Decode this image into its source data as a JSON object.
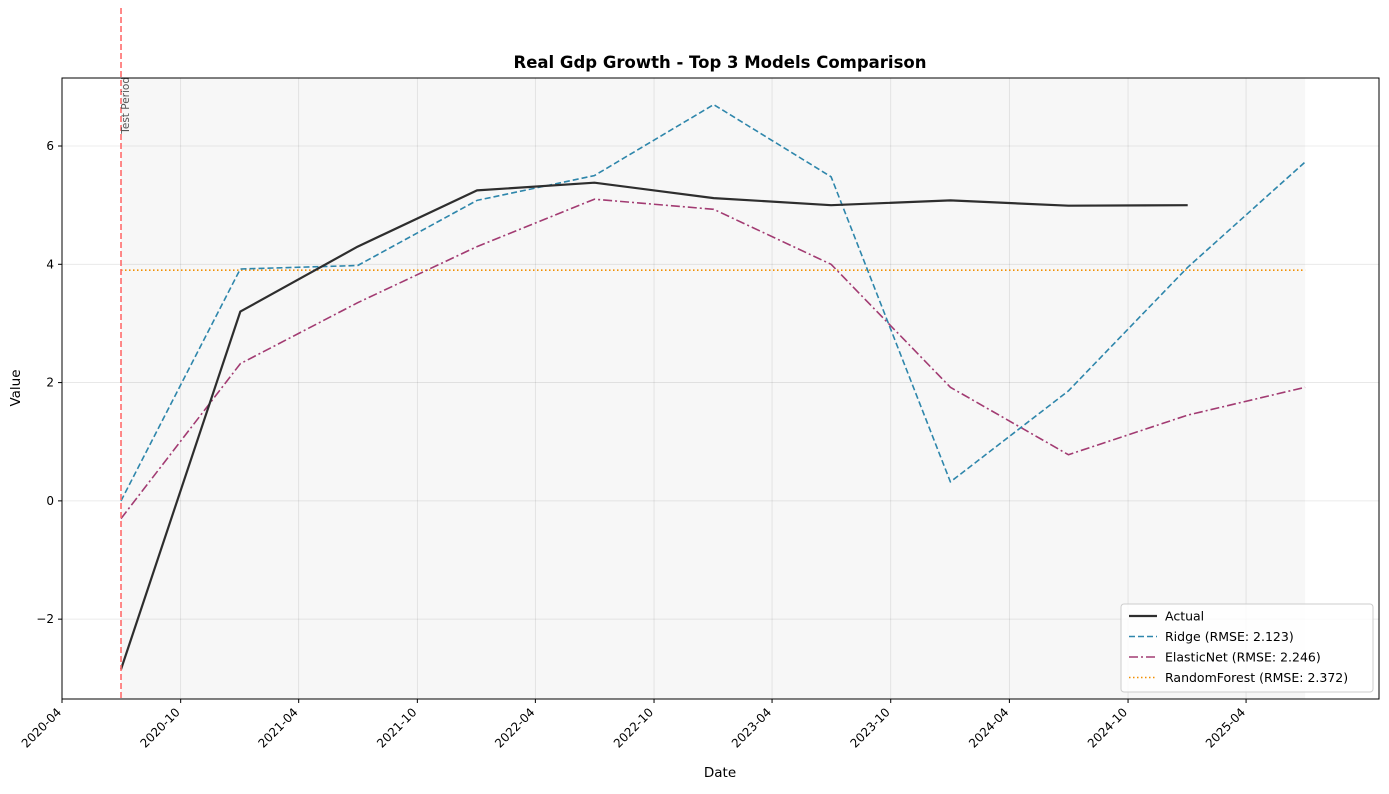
{
  "chart_data": {
    "type": "line",
    "title": "Real Gdp Growth - Top 3 Models Comparison",
    "xlabel": "Date",
    "ylabel": "Value",
    "xlim": [
      "2020-04-01",
      "2025-10-23"
    ],
    "ylim": [
      -3.35,
      7.15
    ],
    "x_ticks": [
      "2020-04",
      "2020-10",
      "2021-04",
      "2021-10",
      "2022-04",
      "2022-10",
      "2023-04",
      "2023-10",
      "2024-04",
      "2024-10",
      "2025-04"
    ],
    "y_ticks": [
      -2,
      0,
      2,
      4,
      6
    ],
    "y_tick_labels": [
      "−2",
      "0",
      "2",
      "4",
      "6"
    ],
    "grid": true,
    "legend_position": "lower-right",
    "test_period": {
      "label": "Test Period",
      "start": "2020-07-01",
      "end": "2025-07-01",
      "line_color": "#ff6b6b",
      "shade_color": "#f7f7f7"
    },
    "series": [
      {
        "name": "Actual",
        "color": "#2e2e2e",
        "style": "solid",
        "x": [
          "2020-07-01",
          "2021-01-01",
          "2021-07-01",
          "2022-01-01",
          "2022-07-01",
          "2023-01-01",
          "2023-07-01",
          "2024-01-01",
          "2024-07-01",
          "2025-01-01"
        ],
        "values": [
          -2.85,
          3.2,
          4.3,
          5.25,
          5.38,
          5.12,
          5.0,
          5.08,
          4.99,
          5.0
        ]
      },
      {
        "name": "Ridge (RMSE: 2.123)",
        "color": "#2e86ab",
        "style": "dashed",
        "x": [
          "2020-07-01",
          "2021-01-01",
          "2021-07-01",
          "2022-01-01",
          "2022-07-01",
          "2023-01-01",
          "2023-07-01",
          "2024-01-01",
          "2024-07-01",
          "2025-01-01",
          "2025-07-01"
        ],
        "values": [
          0.0,
          3.92,
          3.98,
          5.08,
          5.5,
          6.7,
          5.48,
          0.32,
          1.86,
          3.95,
          5.73
        ]
      },
      {
        "name": "ElasticNet (RMSE: 2.246)",
        "color": "#a23b72",
        "style": "dashdot",
        "x": [
          "2020-07-01",
          "2021-01-01",
          "2021-07-01",
          "2022-01-01",
          "2022-07-01",
          "2023-01-01",
          "2023-07-01",
          "2024-01-01",
          "2024-07-01",
          "2025-01-01",
          "2025-07-01"
        ],
        "values": [
          -0.3,
          2.32,
          3.35,
          4.3,
          5.1,
          4.93,
          4.0,
          1.92,
          0.78,
          1.45,
          1.92
        ]
      },
      {
        "name": "RandomForest (RMSE: 2.372)",
        "color": "#f18f01",
        "style": "dotted",
        "x": [
          "2020-07-01",
          "2025-07-01"
        ],
        "values": [
          3.9,
          3.9
        ]
      }
    ]
  }
}
